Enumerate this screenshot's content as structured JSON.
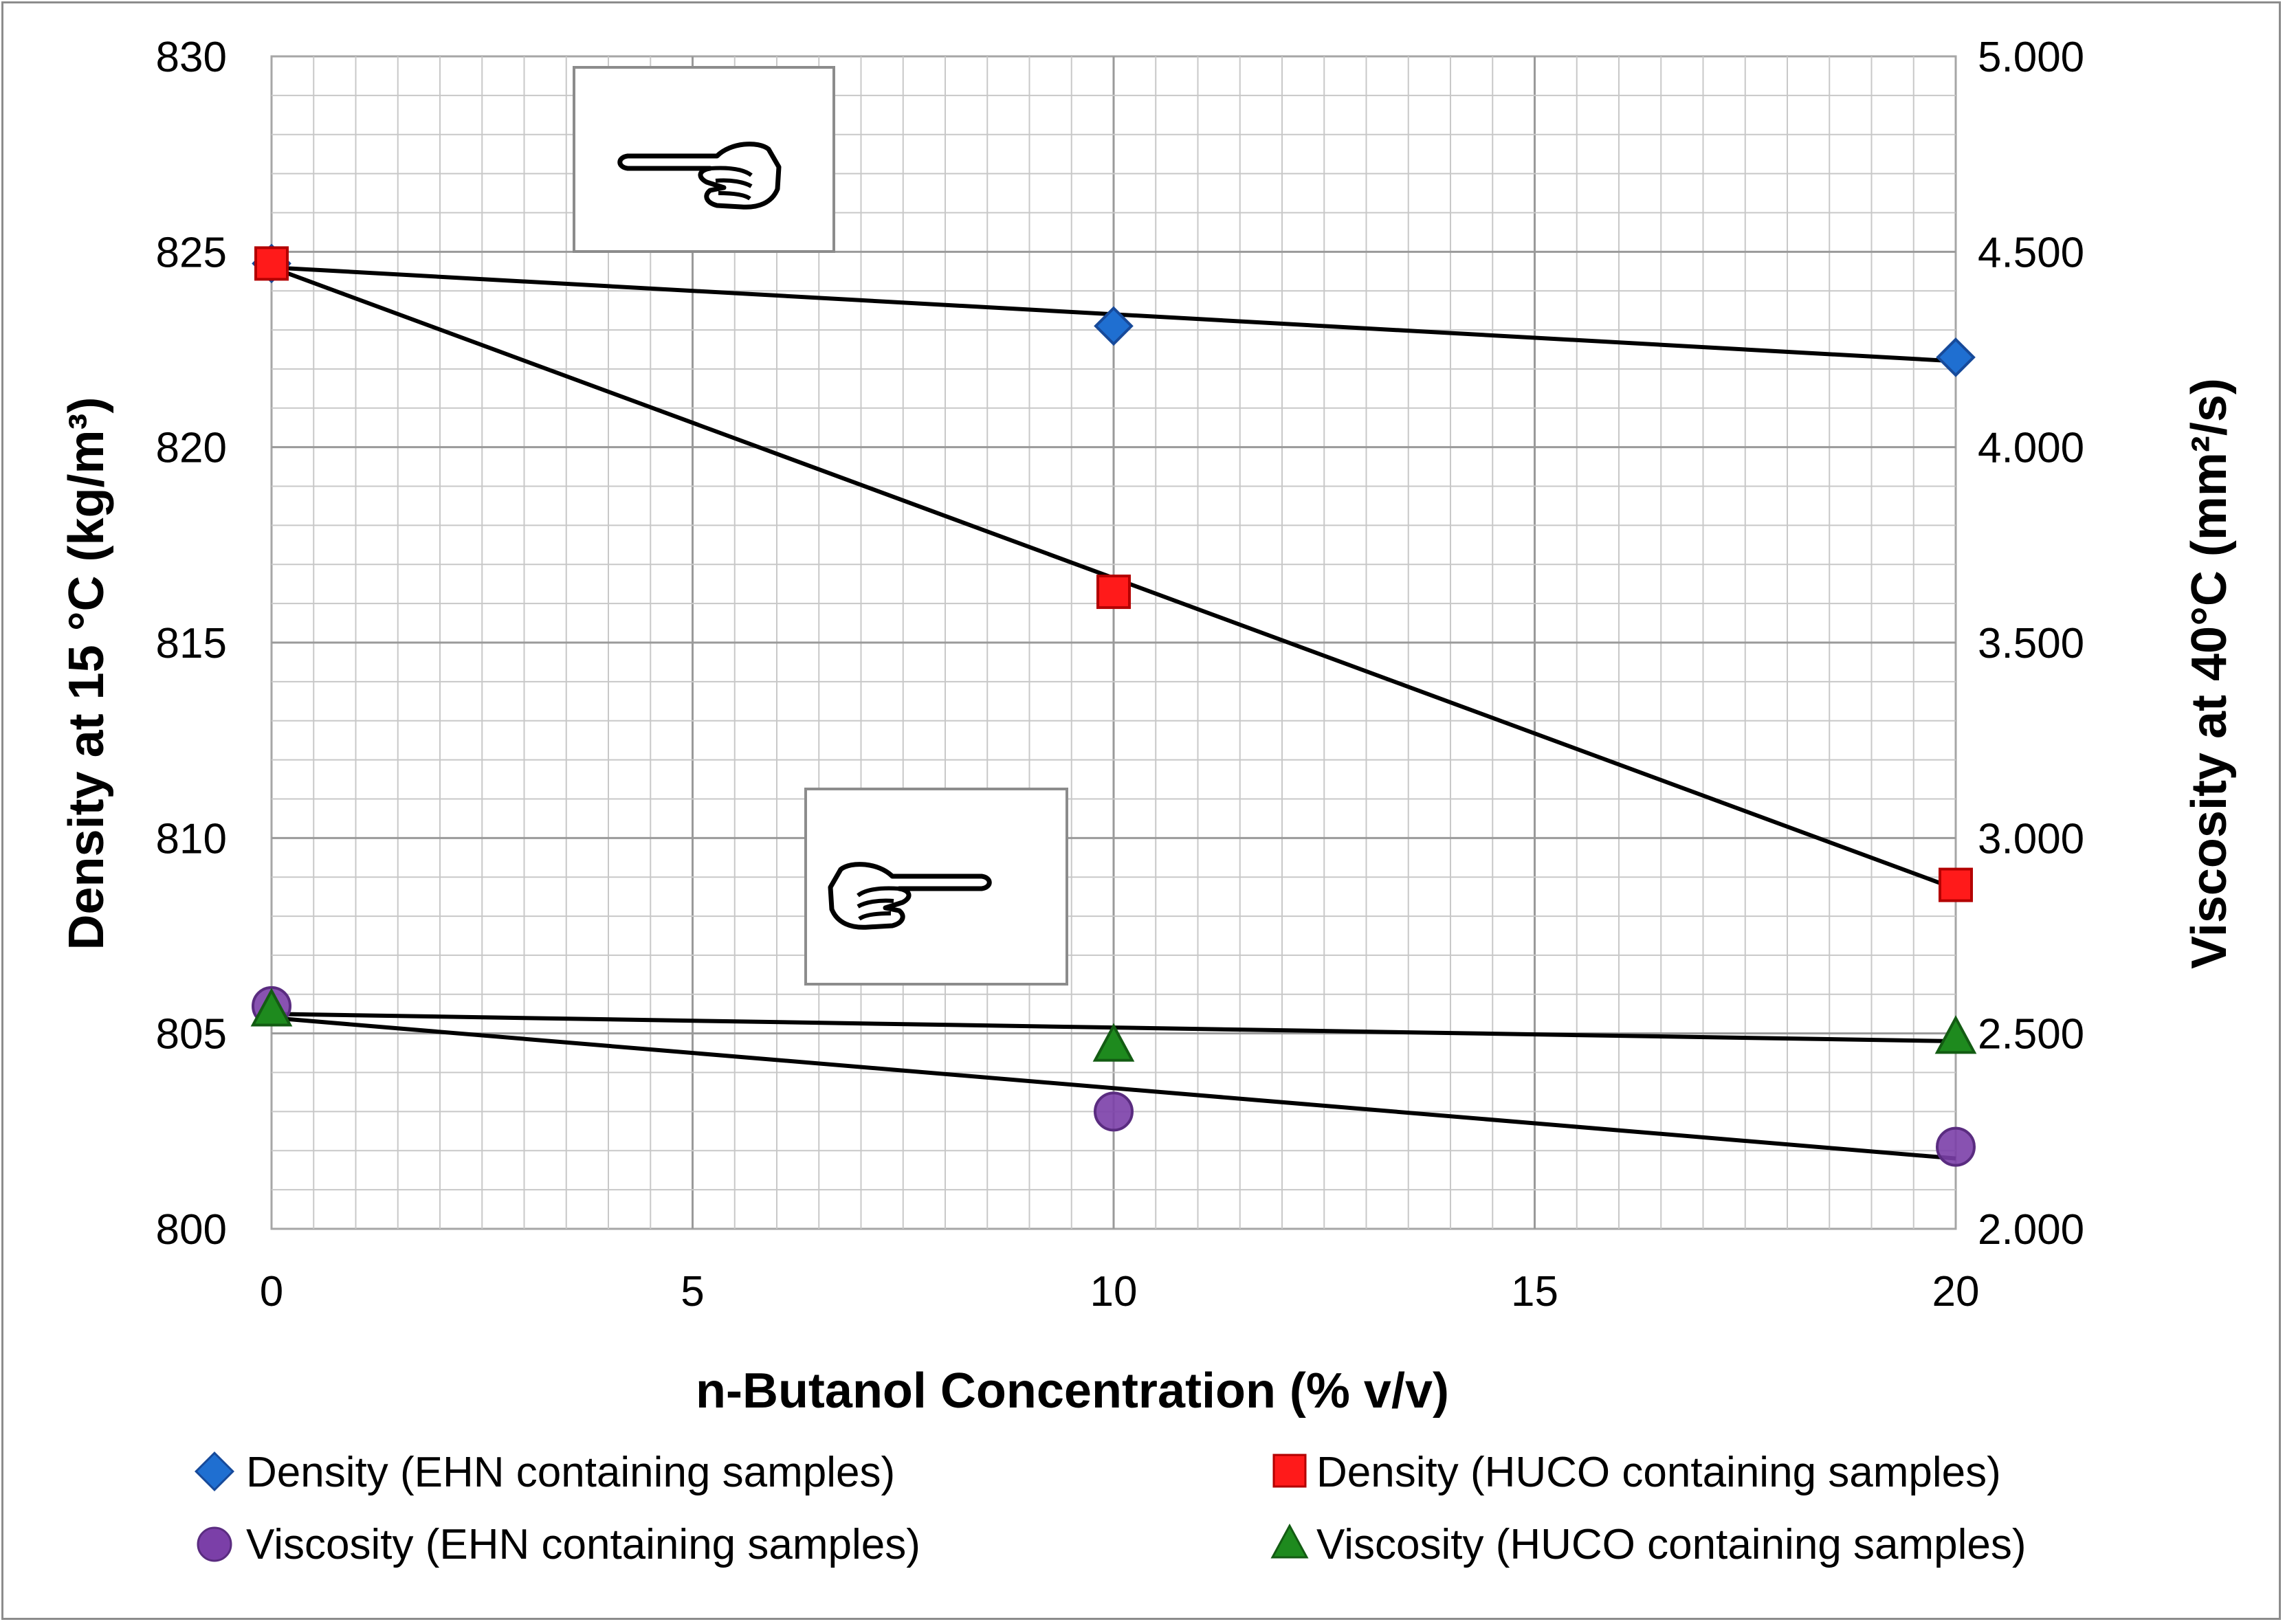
{
  "chart_data": {
    "type": "scatter",
    "x_label": "n-Butanol Concentration (% v/v)",
    "y_label_left": "Density at 15 °C (kg/m³)",
    "y_label_right": "Viscosity at 40°C (mm²/s)",
    "x_range": [
      0,
      20
    ],
    "y_left_range": [
      800,
      830
    ],
    "y_right_range": [
      2.0,
      5.0
    ],
    "x_ticks": [
      "0",
      "5",
      "10",
      "15",
      "20"
    ],
    "y_left_ticks": [
      "800",
      "805",
      "810",
      "815",
      "820",
      "825",
      "830"
    ],
    "y_right_ticks": [
      "2.000",
      "2.500",
      "3.000",
      "3.500",
      "4.000",
      "4.500",
      "5.000"
    ],
    "grid": true,
    "series": [
      {
        "name": "Density (EHN containing samples)",
        "axis": "left",
        "marker": "diamond",
        "color": "#1f6fd1",
        "x": [
          0,
          10,
          20
        ],
        "y": [
          824.7,
          823.1,
          822.3
        ]
      },
      {
        "name": "Density (HUCO containing samples)",
        "axis": "left",
        "marker": "square",
        "color": "#ff1a1a",
        "x": [
          0,
          10,
          20
        ],
        "y": [
          824.7,
          816.3,
          808.8
        ]
      },
      {
        "name": "Viscosity (EHN containing samples)",
        "axis": "right",
        "marker": "circle",
        "color": "#7b3fa8",
        "x": [
          0,
          10,
          20
        ],
        "y": [
          2.57,
          2.3,
          2.21
        ]
      },
      {
        "name": "Viscosity (HUCO containing samples)",
        "axis": "right",
        "marker": "triangle",
        "color": "#1e8a1e",
        "x": [
          0,
          10,
          20
        ],
        "y": [
          2.56,
          2.47,
          2.49
        ]
      }
    ],
    "trendlines": [
      {
        "series": "Density (EHN containing samples)",
        "axis": "left",
        "x": [
          0,
          20
        ],
        "y": [
          824.6,
          822.2
        ]
      },
      {
        "series": "Density (HUCO containing samples)",
        "axis": "left",
        "x": [
          0,
          20
        ],
        "y": [
          824.6,
          808.7
        ]
      },
      {
        "series": "Viscosity (HUCO containing samples)",
        "axis": "right",
        "x": [
          0,
          20
        ],
        "y": [
          2.55,
          2.48
        ]
      },
      {
        "series": "Viscosity (EHN containing samples)",
        "axis": "right",
        "x": [
          0,
          20
        ],
        "y": [
          2.54,
          2.18
        ]
      }
    ],
    "annotations": [
      {
        "type": "pointing-hand-right",
        "points_to": "Density (EHN containing samples)"
      },
      {
        "type": "pointing-hand-right",
        "points_to": "Viscosity (HUCO containing samples)"
      }
    ]
  }
}
